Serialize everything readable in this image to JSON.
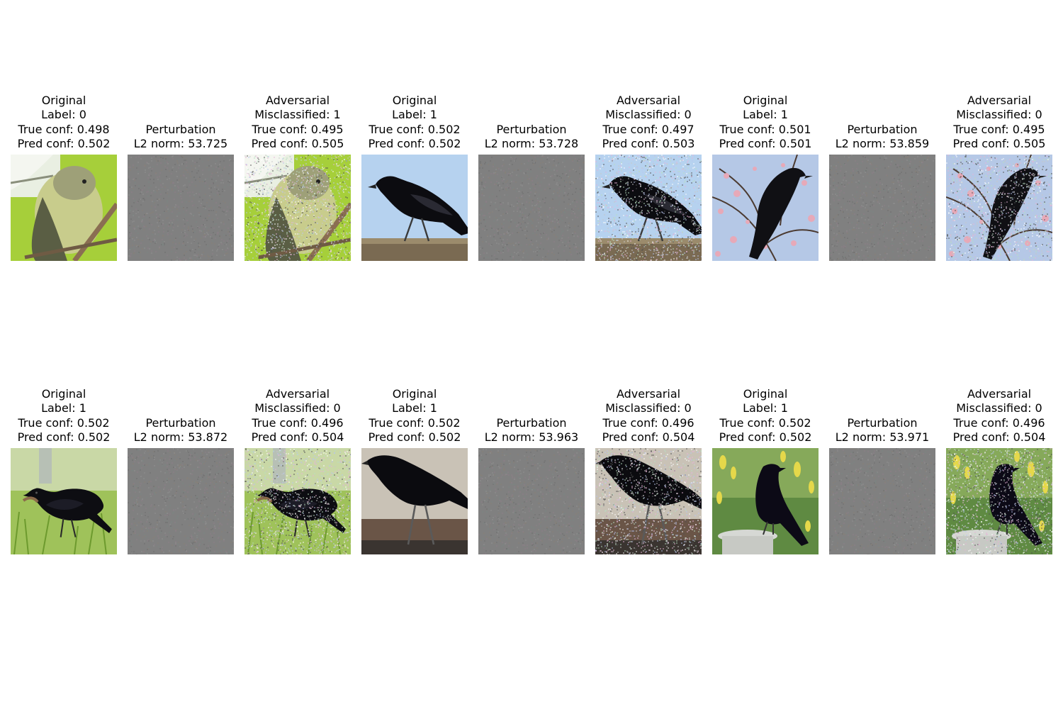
{
  "figure": {
    "rows": [
      {
        "groups": [
          {
            "original": {
              "heading": "Original",
              "label": "Label: 0",
              "true_conf": "True conf: 0.498",
              "pred_conf": "Pred conf: 0.502",
              "scene": "vireo"
            },
            "perturbation": {
              "heading": "Perturbation",
              "l2_norm": "L2 norm: 53.725"
            },
            "adversarial": {
              "heading": "Adversarial",
              "misclassified": "Misclassified: 1",
              "true_conf": "True conf: 0.495",
              "pred_conf": "Pred conf: 0.505",
              "scene": "vireo"
            }
          },
          {
            "original": {
              "heading": "Original",
              "label": "Label: 1",
              "true_conf": "True conf: 0.502",
              "pred_conf": "Pred conf: 0.502",
              "scene": "crow-sky"
            },
            "perturbation": {
              "heading": "Perturbation",
              "l2_norm": "L2 norm: 53.728"
            },
            "adversarial": {
              "heading": "Adversarial",
              "misclassified": "Misclassified: 0",
              "true_conf": "True conf: 0.497",
              "pred_conf": "Pred conf: 0.503",
              "scene": "crow-sky"
            }
          },
          {
            "original": {
              "heading": "Original",
              "label": "Label: 1",
              "true_conf": "True conf: 0.501",
              "pred_conf": "Pred conf: 0.501",
              "scene": "crow-blossom"
            },
            "perturbation": {
              "heading": "Perturbation",
              "l2_norm": "L2 norm: 53.859"
            },
            "adversarial": {
              "heading": "Adversarial",
              "misclassified": "Misclassified: 0",
              "true_conf": "True conf: 0.495",
              "pred_conf": "Pred conf: 0.505",
              "scene": "crow-blossom"
            }
          }
        ]
      },
      {
        "groups": [
          {
            "original": {
              "heading": "Original",
              "label": "Label: 1",
              "true_conf": "True conf: 0.502",
              "pred_conf": "Pred conf: 0.502",
              "scene": "crow-grass"
            },
            "perturbation": {
              "heading": "Perturbation",
              "l2_norm": "L2 norm: 53.872"
            },
            "adversarial": {
              "heading": "Adversarial",
              "misclassified": "Misclassified: 0",
              "true_conf": "True conf: 0.496",
              "pred_conf": "Pred conf: 0.504",
              "scene": "crow-grass"
            }
          },
          {
            "original": {
              "heading": "Original",
              "label": "Label: 1",
              "true_conf": "True conf: 0.502",
              "pred_conf": "Pred conf: 0.502",
              "scene": "crow-ground"
            },
            "perturbation": {
              "heading": "Perturbation",
              "l2_norm": "L2 norm: 53.963"
            },
            "adversarial": {
              "heading": "Adversarial",
              "misclassified": "Misclassified: 0",
              "true_conf": "True conf: 0.496",
              "pred_conf": "Pred conf: 0.504",
              "scene": "crow-ground"
            }
          },
          {
            "original": {
              "heading": "Original",
              "label": "Label: 1",
              "true_conf": "True conf: 0.502",
              "pred_conf": "Pred conf: 0.502",
              "scene": "crow-birdbath"
            },
            "perturbation": {
              "heading": "Perturbation",
              "l2_norm": "L2 norm: 53.971"
            },
            "adversarial": {
              "heading": "Adversarial",
              "misclassified": "Misclassified: 0",
              "true_conf": "True conf: 0.496",
              "pred_conf": "Pred conf: 0.504",
              "scene": "crow-birdbath"
            }
          }
        ]
      }
    ]
  }
}
